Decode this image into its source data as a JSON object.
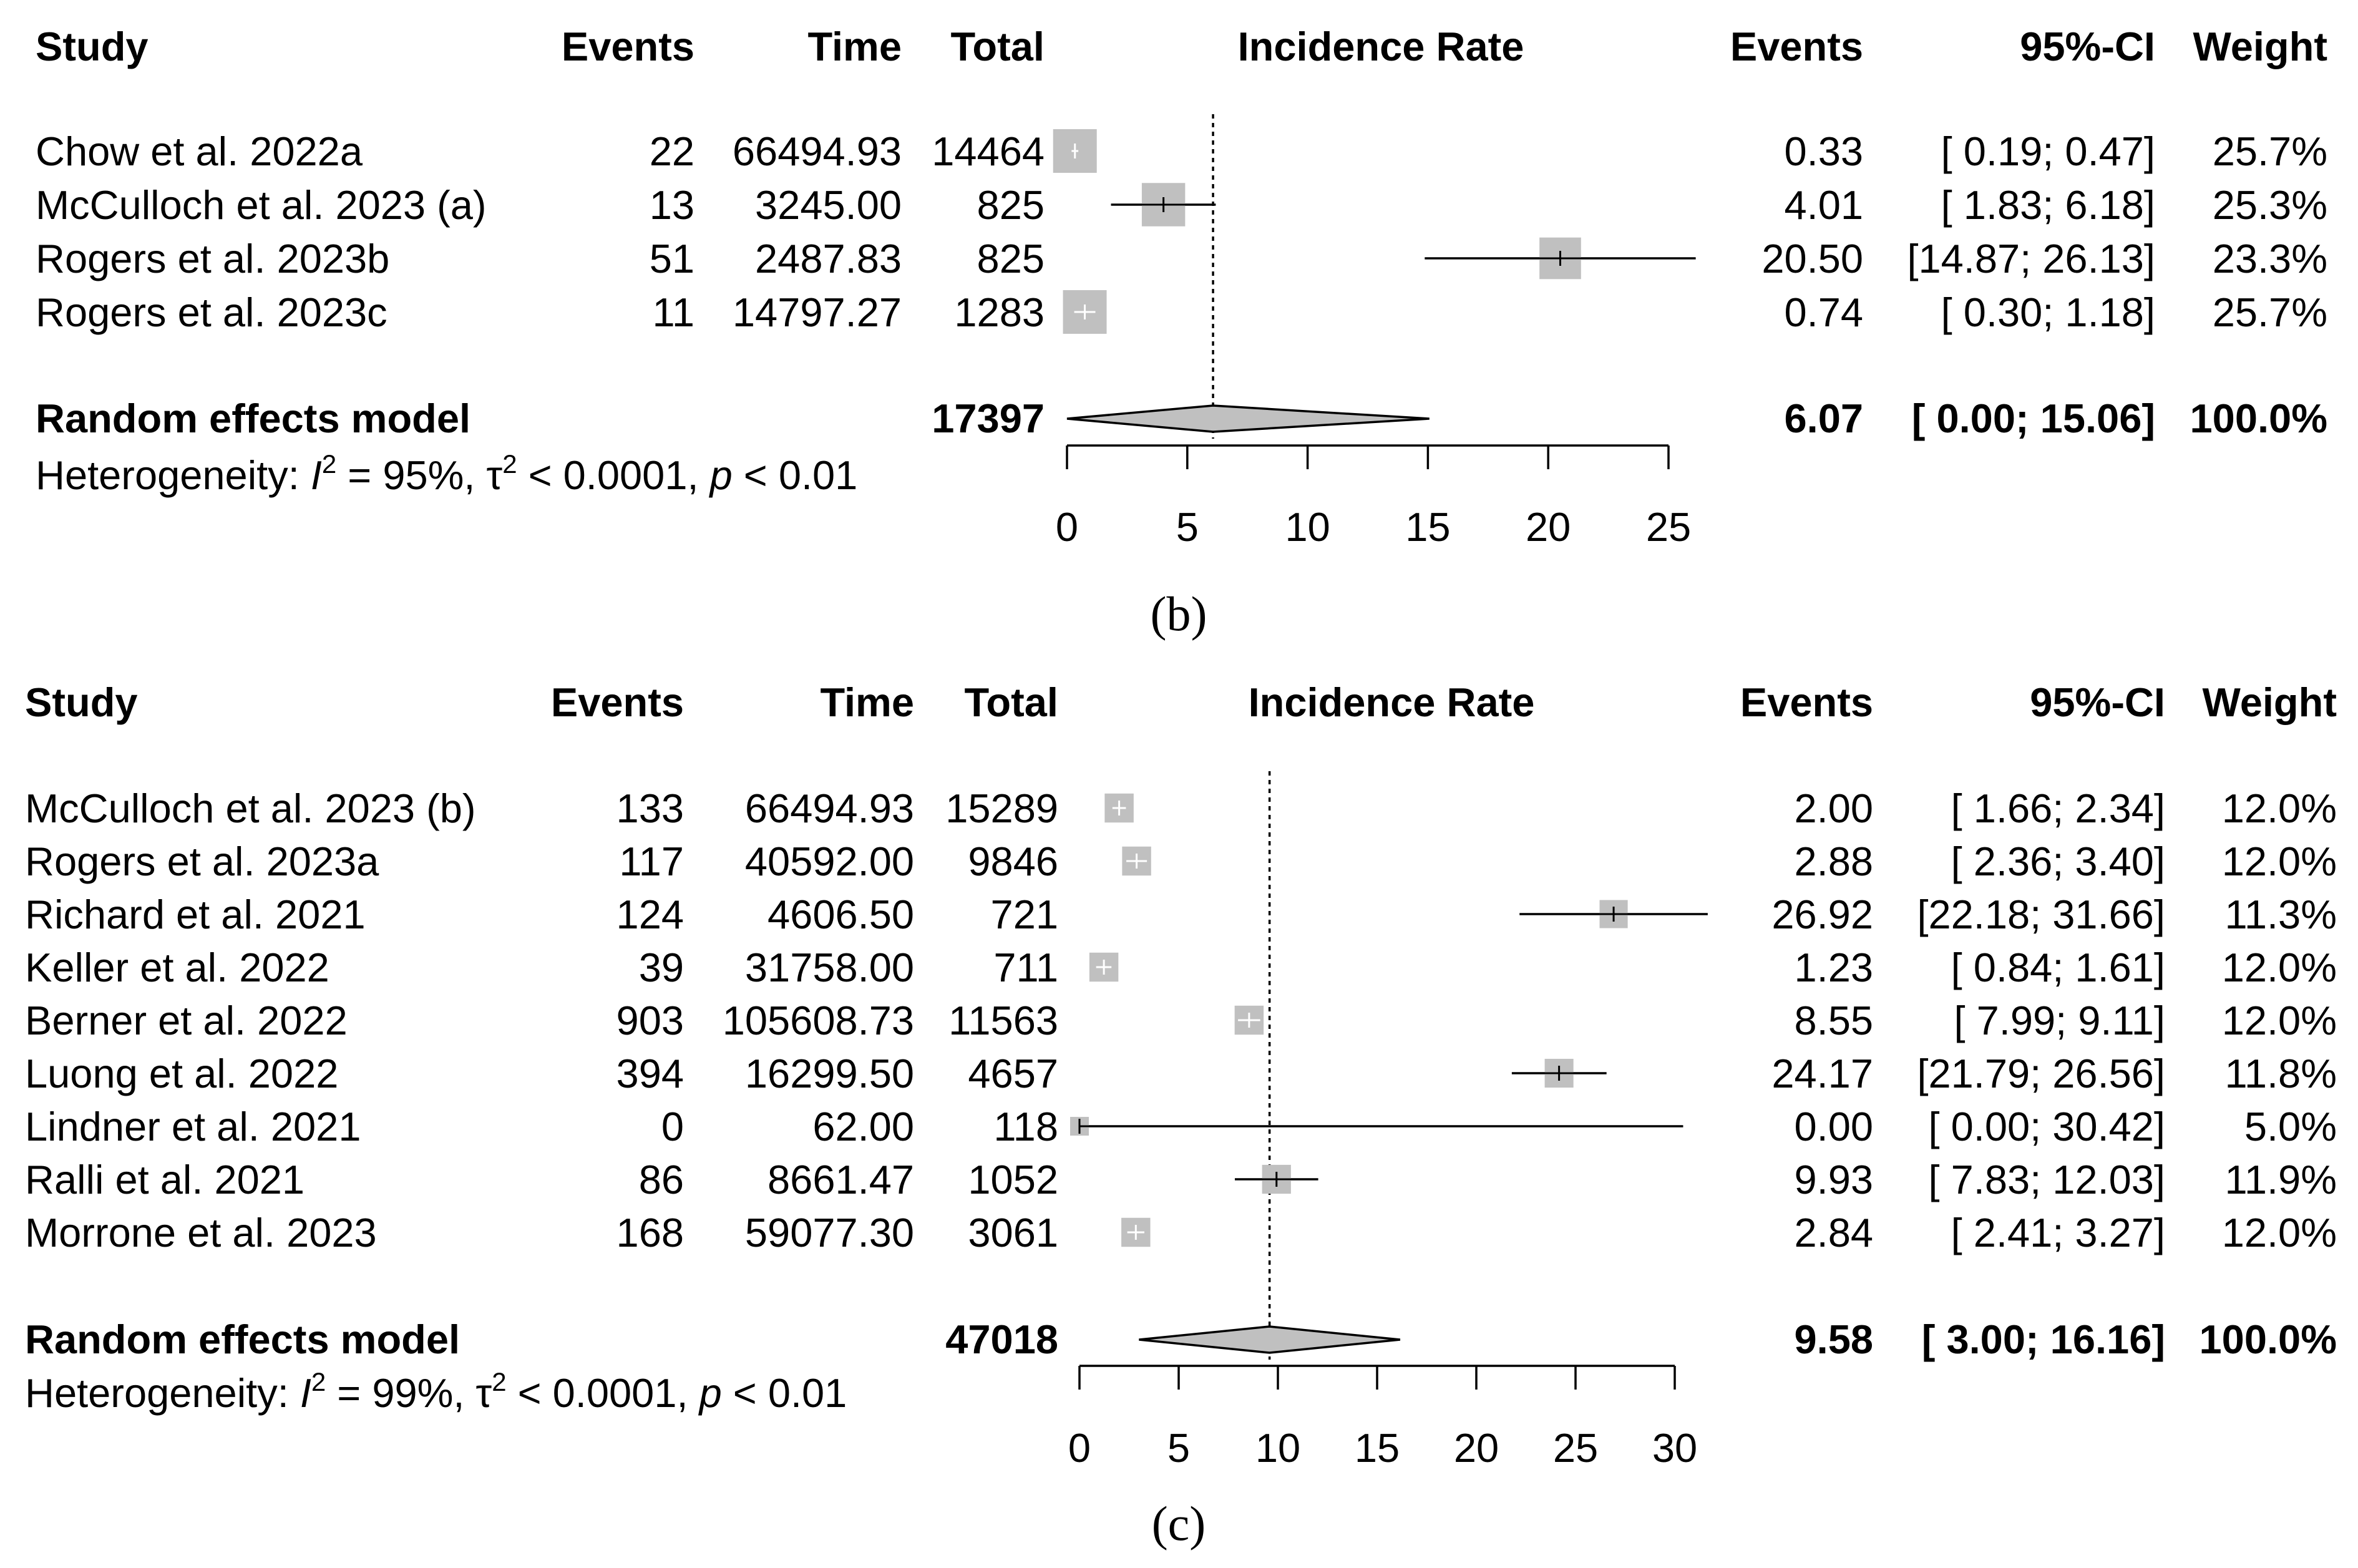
{
  "chart_data": [
    {
      "type": "forest",
      "panel_label": "(b)",
      "columns": {
        "study": "Study",
        "events": "Events",
        "time": "Time",
        "total": "Total",
        "plot": "Incidence Rate",
        "rate": "Events",
        "ci": "95%-CI",
        "weight": "Weight"
      },
      "rows": [
        {
          "study": "Chow et al. 2022a",
          "events": "22",
          "time": "66494.93",
          "total": "14464",
          "rate": 0.33,
          "lower": 0.19,
          "upper": 0.47,
          "rate_text": "0.33",
          "ci_text": "[ 0.19;  0.47]",
          "weight_text": "25.7%",
          "weight": 25.7
        },
        {
          "study": "McCulloch et al. 2023 (a)",
          "events": "13",
          "time": "3245.00",
          "total": "825",
          "rate": 4.01,
          "lower": 1.83,
          "upper": 6.18,
          "rate_text": "4.01",
          "ci_text": "[ 1.83;  6.18]",
          "weight_text": "25.3%",
          "weight": 25.3
        },
        {
          "study": "Rogers et al. 2023b",
          "events": "51",
          "time": "2487.83",
          "total": "825",
          "rate": 20.5,
          "lower": 14.87,
          "upper": 26.13,
          "rate_text": "20.50",
          "ci_text": "[14.87; 26.13]",
          "weight_text": "23.3%",
          "weight": 23.3
        },
        {
          "study": "Rogers et al. 2023c",
          "events": "11",
          "time": "14797.27",
          "total": "1283",
          "rate": 0.74,
          "lower": 0.3,
          "upper": 1.18,
          "rate_text": "0.74",
          "ci_text": "[ 0.30;  1.18]",
          "weight_text": "25.7%",
          "weight": 25.7
        }
      ],
      "summary": {
        "label": "Random effects model",
        "total": "17397",
        "rate": 6.07,
        "lower": 0.0,
        "upper": 15.06,
        "rate_text": "6.07",
        "ci_text": "[ 0.00; 15.06]",
        "weight_text": "100.0%"
      },
      "heterogeneity": {
        "prefix": "Heterogeneity: ",
        "i_symbol": "I",
        "sup1": "2",
        "mid": " = 95%, τ",
        "sup2": "2",
        "mid2": " < 0.0001, ",
        "p_symbol": "p",
        "tail": " < 0.01"
      },
      "xlim": [
        0,
        25
      ],
      "ticks": [
        "0",
        "5",
        "10",
        "15",
        "20",
        "25"
      ],
      "reference_line": 6.07
    },
    {
      "type": "forest",
      "panel_label": "(c)",
      "columns": {
        "study": "Study",
        "events": "Events",
        "time": "Time",
        "total": "Total",
        "plot": "Incidence Rate",
        "rate": "Events",
        "ci": "95%-CI",
        "weight": "Weight"
      },
      "rows": [
        {
          "study": "McCulloch et al. 2023 (b)",
          "events": "133",
          "time": "66494.93",
          "total": "15289",
          "rate": 2.0,
          "lower": 1.66,
          "upper": 2.34,
          "rate_text": "2.00",
          "ci_text": "[ 1.66;  2.34]",
          "weight_text": "12.0%",
          "weight": 12.0
        },
        {
          "study": "Rogers et al. 2023a",
          "events": "117",
          "time": "40592.00",
          "total": "9846",
          "rate": 2.88,
          "lower": 2.36,
          "upper": 3.4,
          "rate_text": "2.88",
          "ci_text": "[ 2.36;  3.40]",
          "weight_text": "12.0%",
          "weight": 12.0
        },
        {
          "study": "Richard et al. 2021",
          "events": "124",
          "time": "4606.50",
          "total": "721",
          "rate": 26.92,
          "lower": 22.18,
          "upper": 31.66,
          "rate_text": "26.92",
          "ci_text": "[22.18; 31.66]",
          "weight_text": "11.3%",
          "weight": 11.3
        },
        {
          "study": "Keller et al. 2022",
          "events": "39",
          "time": "31758.00",
          "total": "711",
          "rate": 1.23,
          "lower": 0.84,
          "upper": 1.61,
          "rate_text": "1.23",
          "ci_text": "[ 0.84;  1.61]",
          "weight_text": "12.0%",
          "weight": 12.0
        },
        {
          "study": "Berner et al. 2022",
          "events": "903",
          "time": "105608.73",
          "total": "11563",
          "rate": 8.55,
          "lower": 7.99,
          "upper": 9.11,
          "rate_text": "8.55",
          "ci_text": "[ 7.99;  9.11]",
          "weight_text": "12.0%",
          "weight": 12.0
        },
        {
          "study": "Luong et al. 2022",
          "events": "394",
          "time": "16299.50",
          "total": "4657",
          "rate": 24.17,
          "lower": 21.79,
          "upper": 26.56,
          "rate_text": "24.17",
          "ci_text": "[21.79; 26.56]",
          "weight_text": "11.8%",
          "weight": 11.8
        },
        {
          "study": "Lindner et al. 2021",
          "events": "0",
          "time": "62.00",
          "total": "118",
          "rate": 0.0,
          "lower": 0.0,
          "upper": 30.42,
          "rate_text": "0.00",
          "ci_text": "[ 0.00; 30.42]",
          "weight_text": "5.0%",
          "weight": 5.0
        },
        {
          "study": "Ralli et al. 2021",
          "events": "86",
          "time": "8661.47",
          "total": "1052",
          "rate": 9.93,
          "lower": 7.83,
          "upper": 12.03,
          "rate_text": "9.93",
          "ci_text": "[ 7.83; 12.03]",
          "weight_text": "11.9%",
          "weight": 11.9
        },
        {
          "study": "Morrone et al. 2023",
          "events": "168",
          "time": "59077.30",
          "total": "3061",
          "rate": 2.84,
          "lower": 2.41,
          "upper": 3.27,
          "rate_text": "2.84",
          "ci_text": "[ 2.41;  3.27]",
          "weight_text": "12.0%",
          "weight": 12.0
        }
      ],
      "summary": {
        "label": "Random effects model",
        "total": "47018",
        "rate": 9.58,
        "lower": 3.0,
        "upper": 16.16,
        "rate_text": "9.58",
        "ci_text": "[ 3.00; 16.16]",
        "weight_text": "100.0%"
      },
      "heterogeneity": {
        "prefix": "Heterogeneity: ",
        "i_symbol": "I",
        "sup1": "2",
        "mid": " = 99%, τ",
        "sup2": "2",
        "mid2": " < 0.0001, ",
        "p_symbol": "p",
        "tail": " < 0.01"
      },
      "xlim": [
        0,
        30
      ],
      "ticks": [
        "0",
        "5",
        "10",
        "15",
        "20",
        "25",
        "30"
      ],
      "reference_line": 9.58
    }
  ]
}
